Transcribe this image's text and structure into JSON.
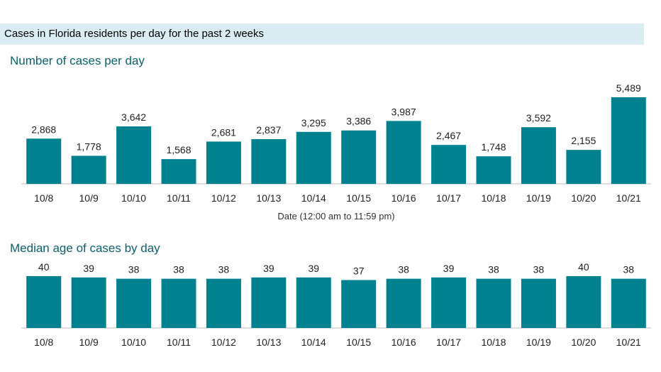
{
  "banner": {
    "text": "Cases in Florida residents per day for the past 2 weeks"
  },
  "colors": {
    "bar": "#00818f",
    "banner_bg": "#d9edf3",
    "title": "#0b5f6b",
    "axis": "#bfbfbf"
  },
  "chart_data": [
    {
      "type": "bar",
      "title": "Number of cases per day",
      "xlabel": "Date (12:00 am to 11:59 pm)",
      "ylabel": "",
      "categories": [
        "10/8",
        "10/9",
        "10/10",
        "10/11",
        "10/12",
        "10/13",
        "10/14",
        "10/15",
        "10/16",
        "10/17",
        "10/18",
        "10/19",
        "10/20",
        "10/21"
      ],
      "values": [
        2868,
        1778,
        3642,
        1568,
        2681,
        2837,
        3295,
        3386,
        3987,
        2467,
        1748,
        3592,
        2155,
        5489
      ],
      "value_labels": [
        "2,868",
        "1,778",
        "3,642",
        "1,568",
        "2,681",
        "2,837",
        "3,295",
        "3,386",
        "3,987",
        "2,467",
        "1,748",
        "3,592",
        "2,155",
        "5,489"
      ],
      "ylim": [
        0,
        5489
      ],
      "grid": false
    },
    {
      "type": "bar",
      "title": "Median age of cases by day",
      "xlabel": "",
      "ylabel": "",
      "categories": [
        "10/8",
        "10/9",
        "10/10",
        "10/11",
        "10/12",
        "10/13",
        "10/14",
        "10/15",
        "10/16",
        "10/17",
        "10/18",
        "10/19",
        "10/20",
        "10/21"
      ],
      "values": [
        40,
        39,
        38,
        38,
        38,
        39,
        39,
        37,
        38,
        39,
        38,
        38,
        40,
        38
      ],
      "value_labels": [
        "40",
        "39",
        "38",
        "38",
        "38",
        "39",
        "39",
        "37",
        "38",
        "39",
        "38",
        "38",
        "40",
        "38"
      ],
      "ylim": [
        0,
        40
      ],
      "grid": false
    }
  ]
}
